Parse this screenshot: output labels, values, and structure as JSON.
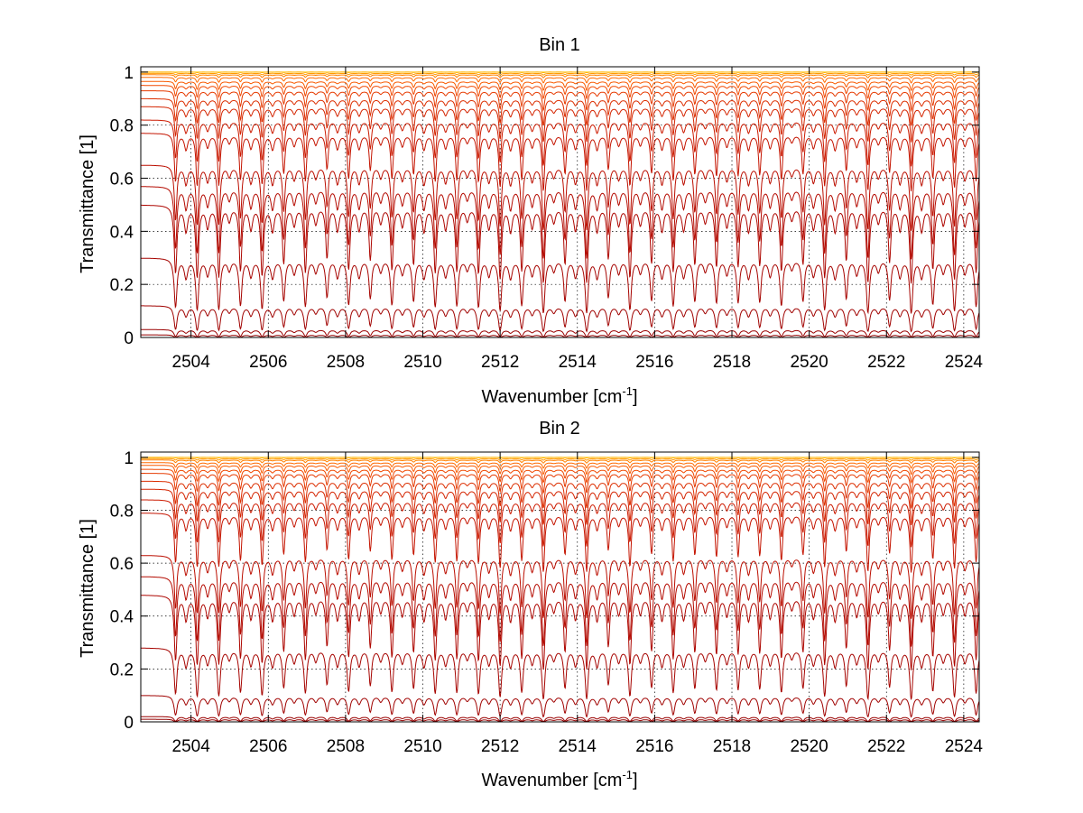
{
  "chart_data": [
    {
      "type": "line",
      "title": "Bin 1",
      "xlabel": {
        "base": "Wavenumber [cm",
        "sup": "-1",
        "close": "]"
      },
      "ylabel": "Transmittance [1]",
      "xlim": [
        2502.7,
        2524.4
      ],
      "ylim": [
        0,
        1.02
      ],
      "xticks": [
        "2504",
        "2506",
        "2508",
        "2510",
        "2512",
        "2514",
        "2516",
        "2518",
        "2520",
        "2522",
        "2524"
      ],
      "yticks": [
        "0",
        "0.2",
        "0.4",
        "0.6",
        "0.8",
        "1"
      ],
      "grid": true,
      "line_spacing_cm1": 0.56,
      "line_start_cm1": 2503.6,
      "absorption_strength": [
        0.0,
        0.02,
        0.05,
        0.1,
        0.18,
        0.3,
        0.45,
        0.7,
        1.0,
        1.4,
        2.0,
        2.8,
        4.0,
        5.5,
        7.5,
        10.0,
        14.0,
        20.0,
        30.0
      ],
      "continuum_levels": [
        1.0,
        1.0,
        0.995,
        0.99,
        0.98,
        0.965,
        0.95,
        0.93,
        0.9,
        0.87,
        0.82,
        0.77,
        0.65,
        0.57,
        0.5,
        0.3,
        0.12,
        0.03,
        0.01
      ],
      "series_colors": [
        "#ffd000",
        "#ffb000",
        "#ff9a00",
        "#ff8000",
        "#ff6a00",
        "#f85a00",
        "#f04800",
        "#e63a00",
        "#dc2e00",
        "#d42400",
        "#cc1a00",
        "#c41400",
        "#bb0e00",
        "#b40a00",
        "#ad0600",
        "#a60400",
        "#a00200",
        "#9a0000",
        "#940000"
      ]
    },
    {
      "type": "line",
      "title": "Bin 2",
      "xlabel": {
        "base": "Wavenumber [cm",
        "sup": "-1",
        "close": "]"
      },
      "ylabel": "Transmittance [1]",
      "xlim": [
        2502.7,
        2524.4
      ],
      "ylim": [
        0,
        1.02
      ],
      "xticks": [
        "2504",
        "2506",
        "2508",
        "2510",
        "2512",
        "2514",
        "2516",
        "2518",
        "2520",
        "2522",
        "2524"
      ],
      "yticks": [
        "0",
        "0.2",
        "0.4",
        "0.6",
        "0.8",
        "1"
      ],
      "grid": true,
      "line_spacing_cm1": 0.56,
      "line_start_cm1": 2503.6,
      "absorption_strength": [
        0.0,
        0.02,
        0.05,
        0.1,
        0.18,
        0.3,
        0.45,
        0.7,
        1.0,
        1.4,
        2.0,
        2.8,
        4.0,
        5.5,
        7.5,
        10.0,
        14.0,
        20.0,
        30.0
      ],
      "continuum_levels": [
        1.0,
        1.0,
        0.995,
        0.99,
        0.98,
        0.97,
        0.955,
        0.94,
        0.91,
        0.88,
        0.84,
        0.79,
        0.63,
        0.55,
        0.48,
        0.28,
        0.1,
        0.02,
        0.01
      ],
      "series_colors": [
        "#ffd000",
        "#ffb000",
        "#ff9a00",
        "#ff8000",
        "#ff6a00",
        "#f85a00",
        "#f04800",
        "#e63a00",
        "#dc2e00",
        "#d42400",
        "#cc1a00",
        "#c41400",
        "#bb0e00",
        "#b40a00",
        "#ad0600",
        "#a60400",
        "#a00200",
        "#9a0000",
        "#940000"
      ]
    }
  ]
}
